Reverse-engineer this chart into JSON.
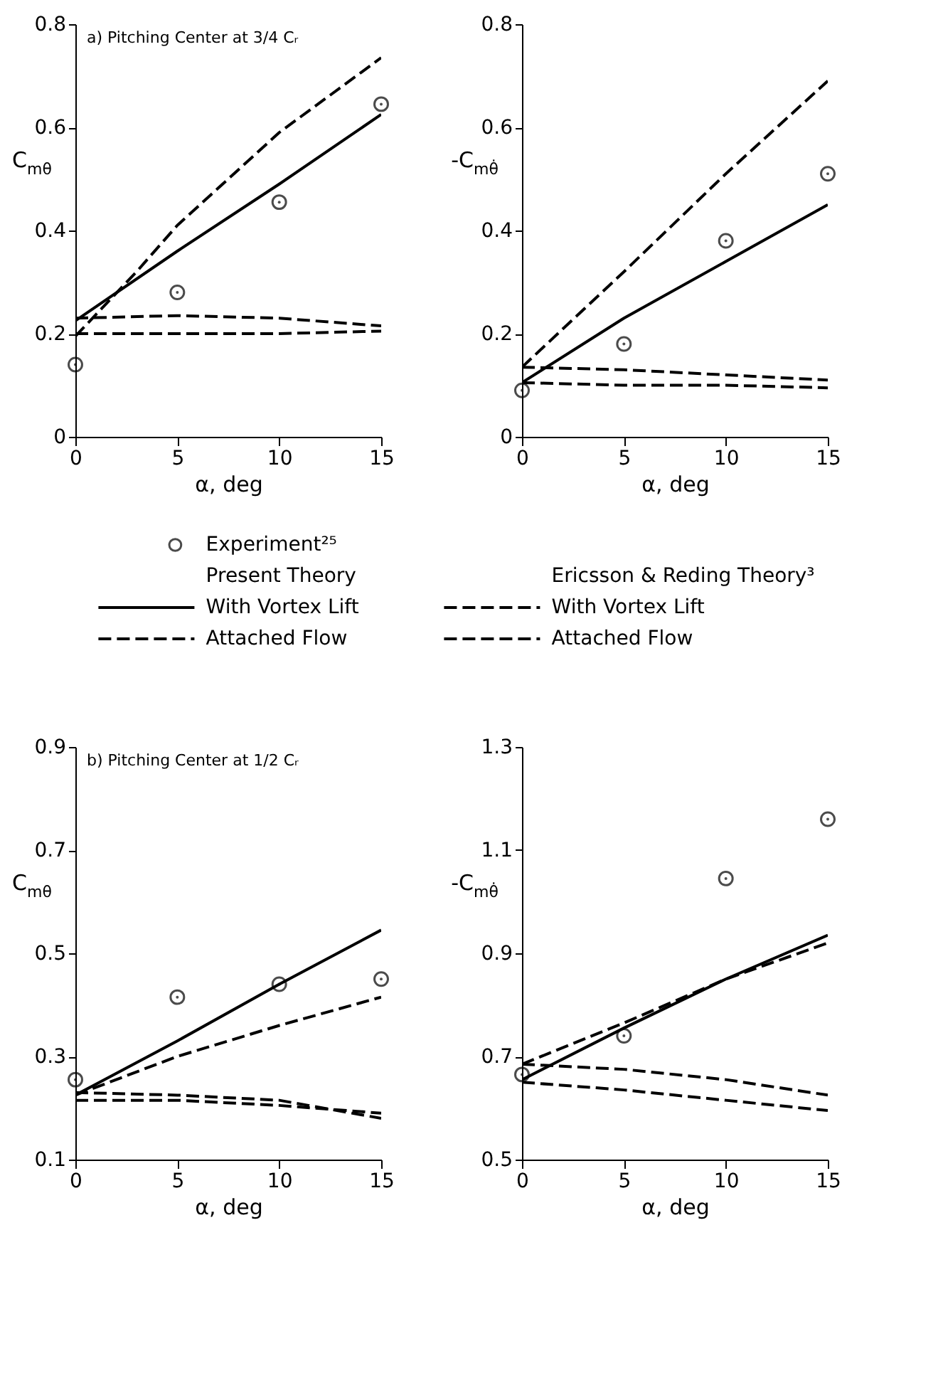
{
  "chart_data": [
    {
      "type": "line",
      "title": "a) Pitching Center at 3/4 Cᵣ",
      "xlabel": "α, deg",
      "ylabel": "C$_{mθ}$",
      "xlim": [
        0,
        15
      ],
      "xticks": [
        0,
        5,
        10,
        15
      ],
      "ylim": [
        0,
        0.8
      ],
      "yticks": [
        0,
        0.2,
        0.4,
        0.6,
        0.8
      ],
      "grid": false,
      "legend": "bottom",
      "annotations": [
        "Present Theory",
        "Ericsson & Reding Theory³"
      ],
      "series": [
        {
          "name": "Experiment²⁵",
          "type": "scatter",
          "marker": "circle",
          "color": "#000000",
          "x": [
            0,
            5,
            10,
            15
          ],
          "values": [
            0.14,
            0.28,
            0.455,
            0.645
          ]
        },
        {
          "name": "With Vortex Lift",
          "color": "#000000",
          "line_style": "solid",
          "x": [
            0,
            5,
            10,
            15
          ],
          "values": [
            0.225,
            0.36,
            0.49,
            0.625
          ]
        },
        {
          "name": "Attached Flow",
          "color": "#000000",
          "line_style": "dashed",
          "x": [
            0,
            5,
            10,
            15
          ],
          "values": [
            0.23,
            0.235,
            0.23,
            0.215
          ]
        },
        {
          "name": "With Vortex Lift",
          "color": "#000000",
          "line_style": "dashed",
          "x": [
            0,
            3,
            5,
            10,
            15
          ],
          "values": [
            0.195,
            0.32,
            0.41,
            0.59,
            0.735
          ]
        },
        {
          "name": "Attached Flow",
          "color": "#000000",
          "line_style": "dashed",
          "x": [
            0,
            5,
            10,
            15
          ],
          "values": [
            0.2,
            0.2,
            0.2,
            0.205
          ]
        }
      ]
    },
    {
      "type": "line",
      "xlabel": "α, deg",
      "ylabel": "-C$_{mθ̇}$",
      "xlim": [
        0,
        15
      ],
      "xticks": [
        0,
        5,
        10,
        15
      ],
      "ylim": [
        0,
        0.8
      ],
      "yticks": [
        0,
        0.2,
        0.4,
        0.6,
        0.8
      ],
      "grid": false,
      "series": [
        {
          "type": "scatter",
          "marker": "circle",
          "color": "#000000",
          "x": [
            0,
            5,
            10,
            15
          ],
          "values": [
            0.09,
            0.18,
            0.38,
            0.51
          ]
        },
        {
          "color": "#000000",
          "line_style": "solid",
          "x": [
            0,
            5,
            10,
            15
          ],
          "values": [
            0.105,
            0.23,
            0.34,
            0.45
          ]
        },
        {
          "color": "#000000",
          "line_style": "dashed",
          "x": [
            0,
            5,
            10,
            15
          ],
          "values": [
            0.105,
            0.1,
            0.1,
            0.095
          ]
        },
        {
          "color": "#000000",
          "line_style": "dashed",
          "x": [
            0,
            5,
            10,
            15
          ],
          "values": [
            0.135,
            0.32,
            0.51,
            0.69
          ]
        },
        {
          "color": "#000000",
          "line_style": "dashed",
          "x": [
            0,
            5,
            10,
            15
          ],
          "values": [
            0.135,
            0.13,
            0.12,
            0.11
          ]
        }
      ]
    },
    {
      "type": "line",
      "title": "b) Pitching Center at 1/2 Cᵣ",
      "xlabel": "α, deg",
      "ylabel": "C$_{mθ}$",
      "xlim": [
        0,
        15
      ],
      "xticks": [
        0,
        5,
        10,
        15
      ],
      "ylim": [
        0.1,
        0.9
      ],
      "yticks": [
        0.1,
        0.3,
        0.5,
        0.7,
        0.9
      ],
      "grid": false,
      "series": [
        {
          "type": "scatter",
          "marker": "circle",
          "color": "#000000",
          "x": [
            0,
            5,
            10,
            15
          ],
          "values": [
            0.255,
            0.415,
            0.44,
            0.45
          ]
        },
        {
          "color": "#000000",
          "line_style": "solid",
          "x": [
            0,
            5,
            10,
            15
          ],
          "values": [
            0.225,
            0.33,
            0.44,
            0.545
          ]
        },
        {
          "color": "#000000",
          "line_style": "dashed",
          "x": [
            0,
            5,
            10,
            15
          ],
          "values": [
            0.215,
            0.215,
            0.205,
            0.19
          ]
        },
        {
          "color": "#000000",
          "line_style": "dashed",
          "x": [
            0,
            5,
            10,
            15
          ],
          "values": [
            0.225,
            0.3,
            0.36,
            0.415
          ]
        },
        {
          "color": "#000000",
          "line_style": "dashed",
          "x": [
            0,
            5,
            10,
            15
          ],
          "values": [
            0.23,
            0.225,
            0.215,
            0.18
          ]
        }
      ]
    },
    {
      "type": "line",
      "xlabel": "α, deg",
      "ylabel": "-C$_{mθ̇}$",
      "xlim": [
        0,
        15
      ],
      "xticks": [
        0,
        5,
        10,
        15
      ],
      "ylim": [
        0.5,
        1.3
      ],
      "yticks": [
        0.5,
        0.7,
        0.9,
        1.1,
        1.3
      ],
      "grid": false,
      "series": [
        {
          "type": "scatter",
          "marker": "circle",
          "color": "#000000",
          "x": [
            0,
            5,
            10,
            15
          ],
          "values": [
            0.665,
            0.74,
            1.045,
            1.16
          ]
        },
        {
          "color": "#000000",
          "line_style": "solid",
          "x": [
            0,
            5,
            10,
            15
          ],
          "values": [
            0.655,
            0.755,
            0.85,
            0.935
          ]
        },
        {
          "color": "#000000",
          "line_style": "dashed",
          "x": [
            0,
            5,
            10,
            15
          ],
          "values": [
            0.65,
            0.635,
            0.615,
            0.595
          ]
        },
        {
          "color": "#000000",
          "line_style": "dashed",
          "x": [
            0,
            5,
            10,
            15
          ],
          "values": [
            0.685,
            0.765,
            0.85,
            0.92
          ]
        },
        {
          "color": "#000000",
          "line_style": "dashed",
          "x": [
            0,
            5,
            10,
            15
          ],
          "values": [
            0.685,
            0.675,
            0.655,
            0.625
          ]
        }
      ]
    }
  ]
}
